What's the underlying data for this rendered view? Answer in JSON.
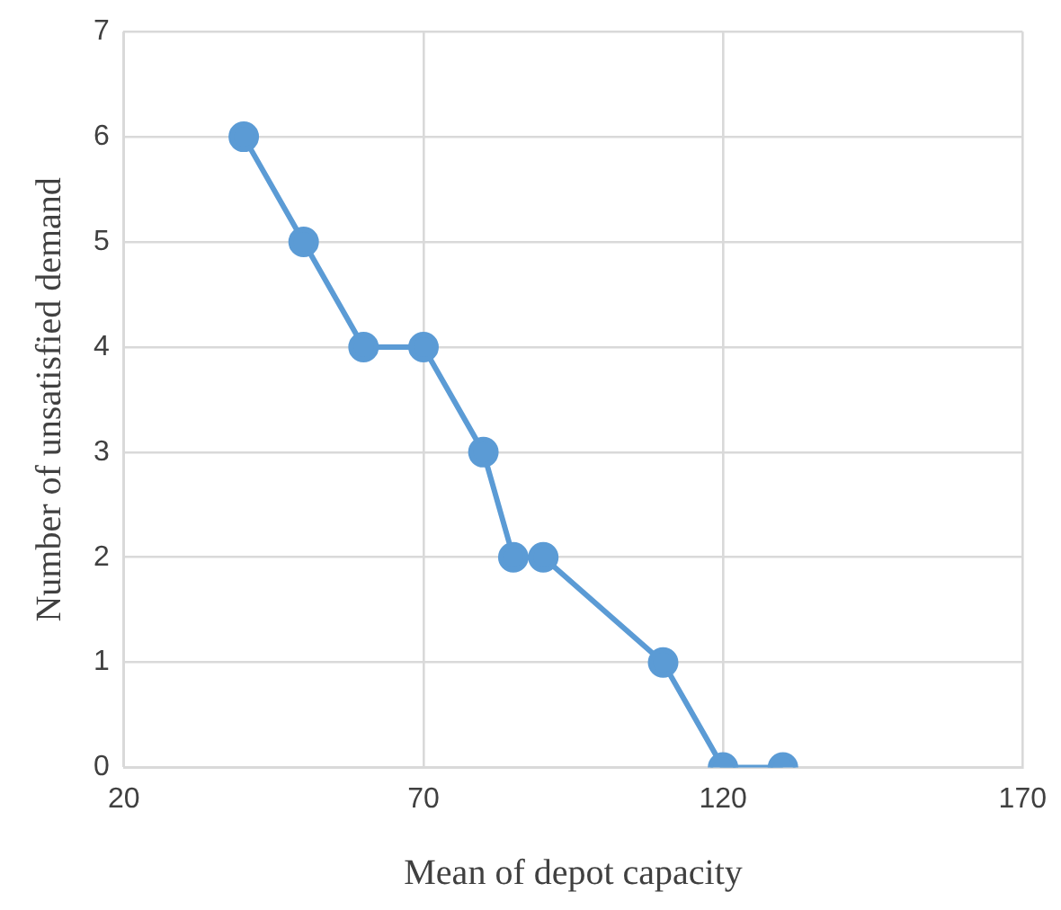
{
  "chart_data": {
    "type": "scatter",
    "xlabel": "Mean of depot capacity",
    "ylabel": "Number of unsatisfied demand",
    "x": [
      40,
      50,
      60,
      70,
      80,
      85,
      90,
      110,
      120,
      130
    ],
    "series": [
      {
        "type": "line",
        "color": "#5b9bd5",
        "values": [
          6,
          5,
          4,
          4,
          3,
          2,
          2,
          1,
          0,
          0
        ]
      }
    ],
    "xlim": [
      20,
      170
    ],
    "xticks": [
      20,
      70,
      120,
      170
    ],
    "ylim": [
      0,
      7
    ],
    "yticks": [
      0,
      1,
      2,
      3,
      4,
      5,
      6,
      7
    ],
    "grid": true,
    "legend": false,
    "marker": "circle",
    "line_style": "solid"
  }
}
